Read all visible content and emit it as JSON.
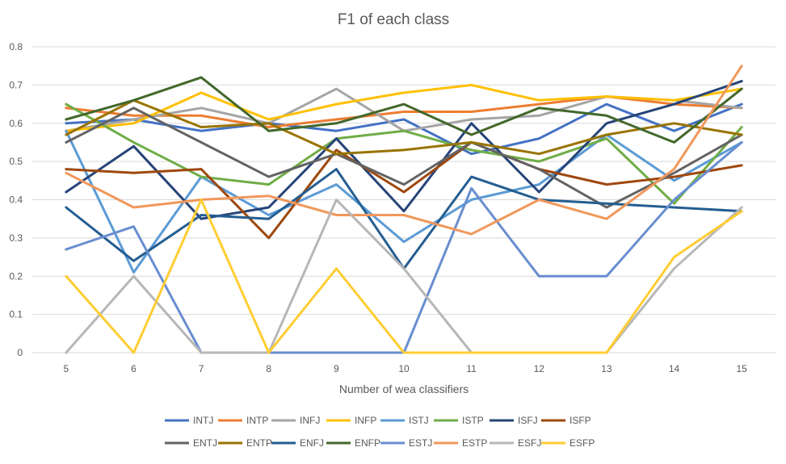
{
  "chart_data": {
    "type": "line",
    "title": "F1 of each class",
    "xlabel": "Number of wea classifiers",
    "ylabel": "",
    "x": [
      5,
      6,
      7,
      8,
      9,
      10,
      11,
      12,
      13,
      14,
      15
    ],
    "ylim": [
      0,
      0.8
    ],
    "yticks": [
      "0",
      "0.1",
      "0.2",
      "0.3",
      "0.4",
      "0.5",
      "0.6",
      "0.7",
      "0.8"
    ],
    "grid": true,
    "legend_position": "bottom",
    "series": [
      {
        "name": "INTJ",
        "color": "#4472c4",
        "values": [
          0.6,
          0.61,
          0.58,
          0.6,
          0.58,
          0.61,
          0.52,
          0.56,
          0.65,
          0.58,
          0.65
        ]
      },
      {
        "name": "INTP",
        "color": "#ed7d31",
        "values": [
          0.64,
          0.62,
          0.62,
          0.59,
          0.61,
          0.63,
          0.63,
          0.65,
          0.67,
          0.65,
          0.64
        ]
      },
      {
        "name": "INFJ",
        "color": "#a5a5a5",
        "values": [
          0.58,
          0.61,
          0.64,
          0.6,
          0.69,
          0.58,
          0.61,
          0.62,
          0.67,
          0.66,
          0.64
        ]
      },
      {
        "name": "INFP",
        "color": "#ffc000",
        "values": [
          0.58,
          0.6,
          0.68,
          0.61,
          0.65,
          0.68,
          0.7,
          0.66,
          0.67,
          0.66,
          0.69
        ]
      },
      {
        "name": "ISTJ",
        "color": "#5b9bd5",
        "values": [
          0.58,
          0.21,
          0.46,
          0.36,
          0.44,
          0.29,
          0.4,
          0.44,
          0.57,
          0.45,
          0.55
        ]
      },
      {
        "name": "ISTP",
        "color": "#70ad47",
        "values": [
          0.65,
          0.55,
          0.46,
          0.44,
          0.56,
          0.58,
          0.53,
          0.5,
          0.56,
          0.39,
          0.59
        ]
      },
      {
        "name": "ISFJ",
        "color": "#264478",
        "values": [
          0.42,
          0.54,
          0.35,
          0.38,
          0.56,
          0.37,
          0.6,
          0.42,
          0.6,
          0.65,
          0.71
        ]
      },
      {
        "name": "ISFP",
        "color": "#9e480e",
        "values": [
          0.48,
          0.47,
          0.48,
          0.3,
          0.53,
          0.42,
          0.55,
          0.48,
          0.44,
          0.46,
          0.49
        ]
      },
      {
        "name": "ENTJ",
        "color": "#636363",
        "values": [
          0.55,
          0.64,
          0.55,
          0.46,
          0.52,
          0.44,
          0.55,
          0.48,
          0.38,
          0.47,
          0.57
        ]
      },
      {
        "name": "ENTP",
        "color": "#997300",
        "values": [
          0.57,
          0.66,
          0.59,
          0.6,
          0.52,
          0.53,
          0.55,
          0.52,
          0.57,
          0.6,
          0.57
        ]
      },
      {
        "name": "ENFJ",
        "color": "#255e91",
        "values": [
          0.38,
          0.24,
          0.36,
          0.35,
          0.48,
          0.22,
          0.46,
          0.4,
          0.39,
          0.38,
          0.37
        ]
      },
      {
        "name": "ENFP",
        "color": "#43682b",
        "values": [
          0.61,
          0.66,
          0.72,
          0.58,
          0.6,
          0.65,
          0.57,
          0.64,
          0.62,
          0.55,
          0.69
        ]
      },
      {
        "name": "ESTJ",
        "color": "#698ed0",
        "values": [
          0.27,
          0.33,
          0.0,
          0.0,
          0.0,
          0.0,
          0.43,
          0.2,
          0.2,
          0.4,
          0.55
        ]
      },
      {
        "name": "ESTP",
        "color": "#f1975a",
        "values": [
          0.47,
          0.38,
          0.4,
          0.41,
          0.36,
          0.36,
          0.31,
          0.4,
          0.35,
          0.48,
          0.75
        ]
      },
      {
        "name": "ESFJ",
        "color": "#b7b7b7",
        "values": [
          0.0,
          0.2,
          0.0,
          0.0,
          0.4,
          0.22,
          0.0,
          0.0,
          0.0,
          0.22,
          0.38
        ]
      },
      {
        "name": "ESFP",
        "color": "#ffcd33",
        "values": [
          0.2,
          0.0,
          0.4,
          0.0,
          0.22,
          0.0,
          0.0,
          0.0,
          0.0,
          0.25,
          0.37
        ]
      }
    ]
  }
}
